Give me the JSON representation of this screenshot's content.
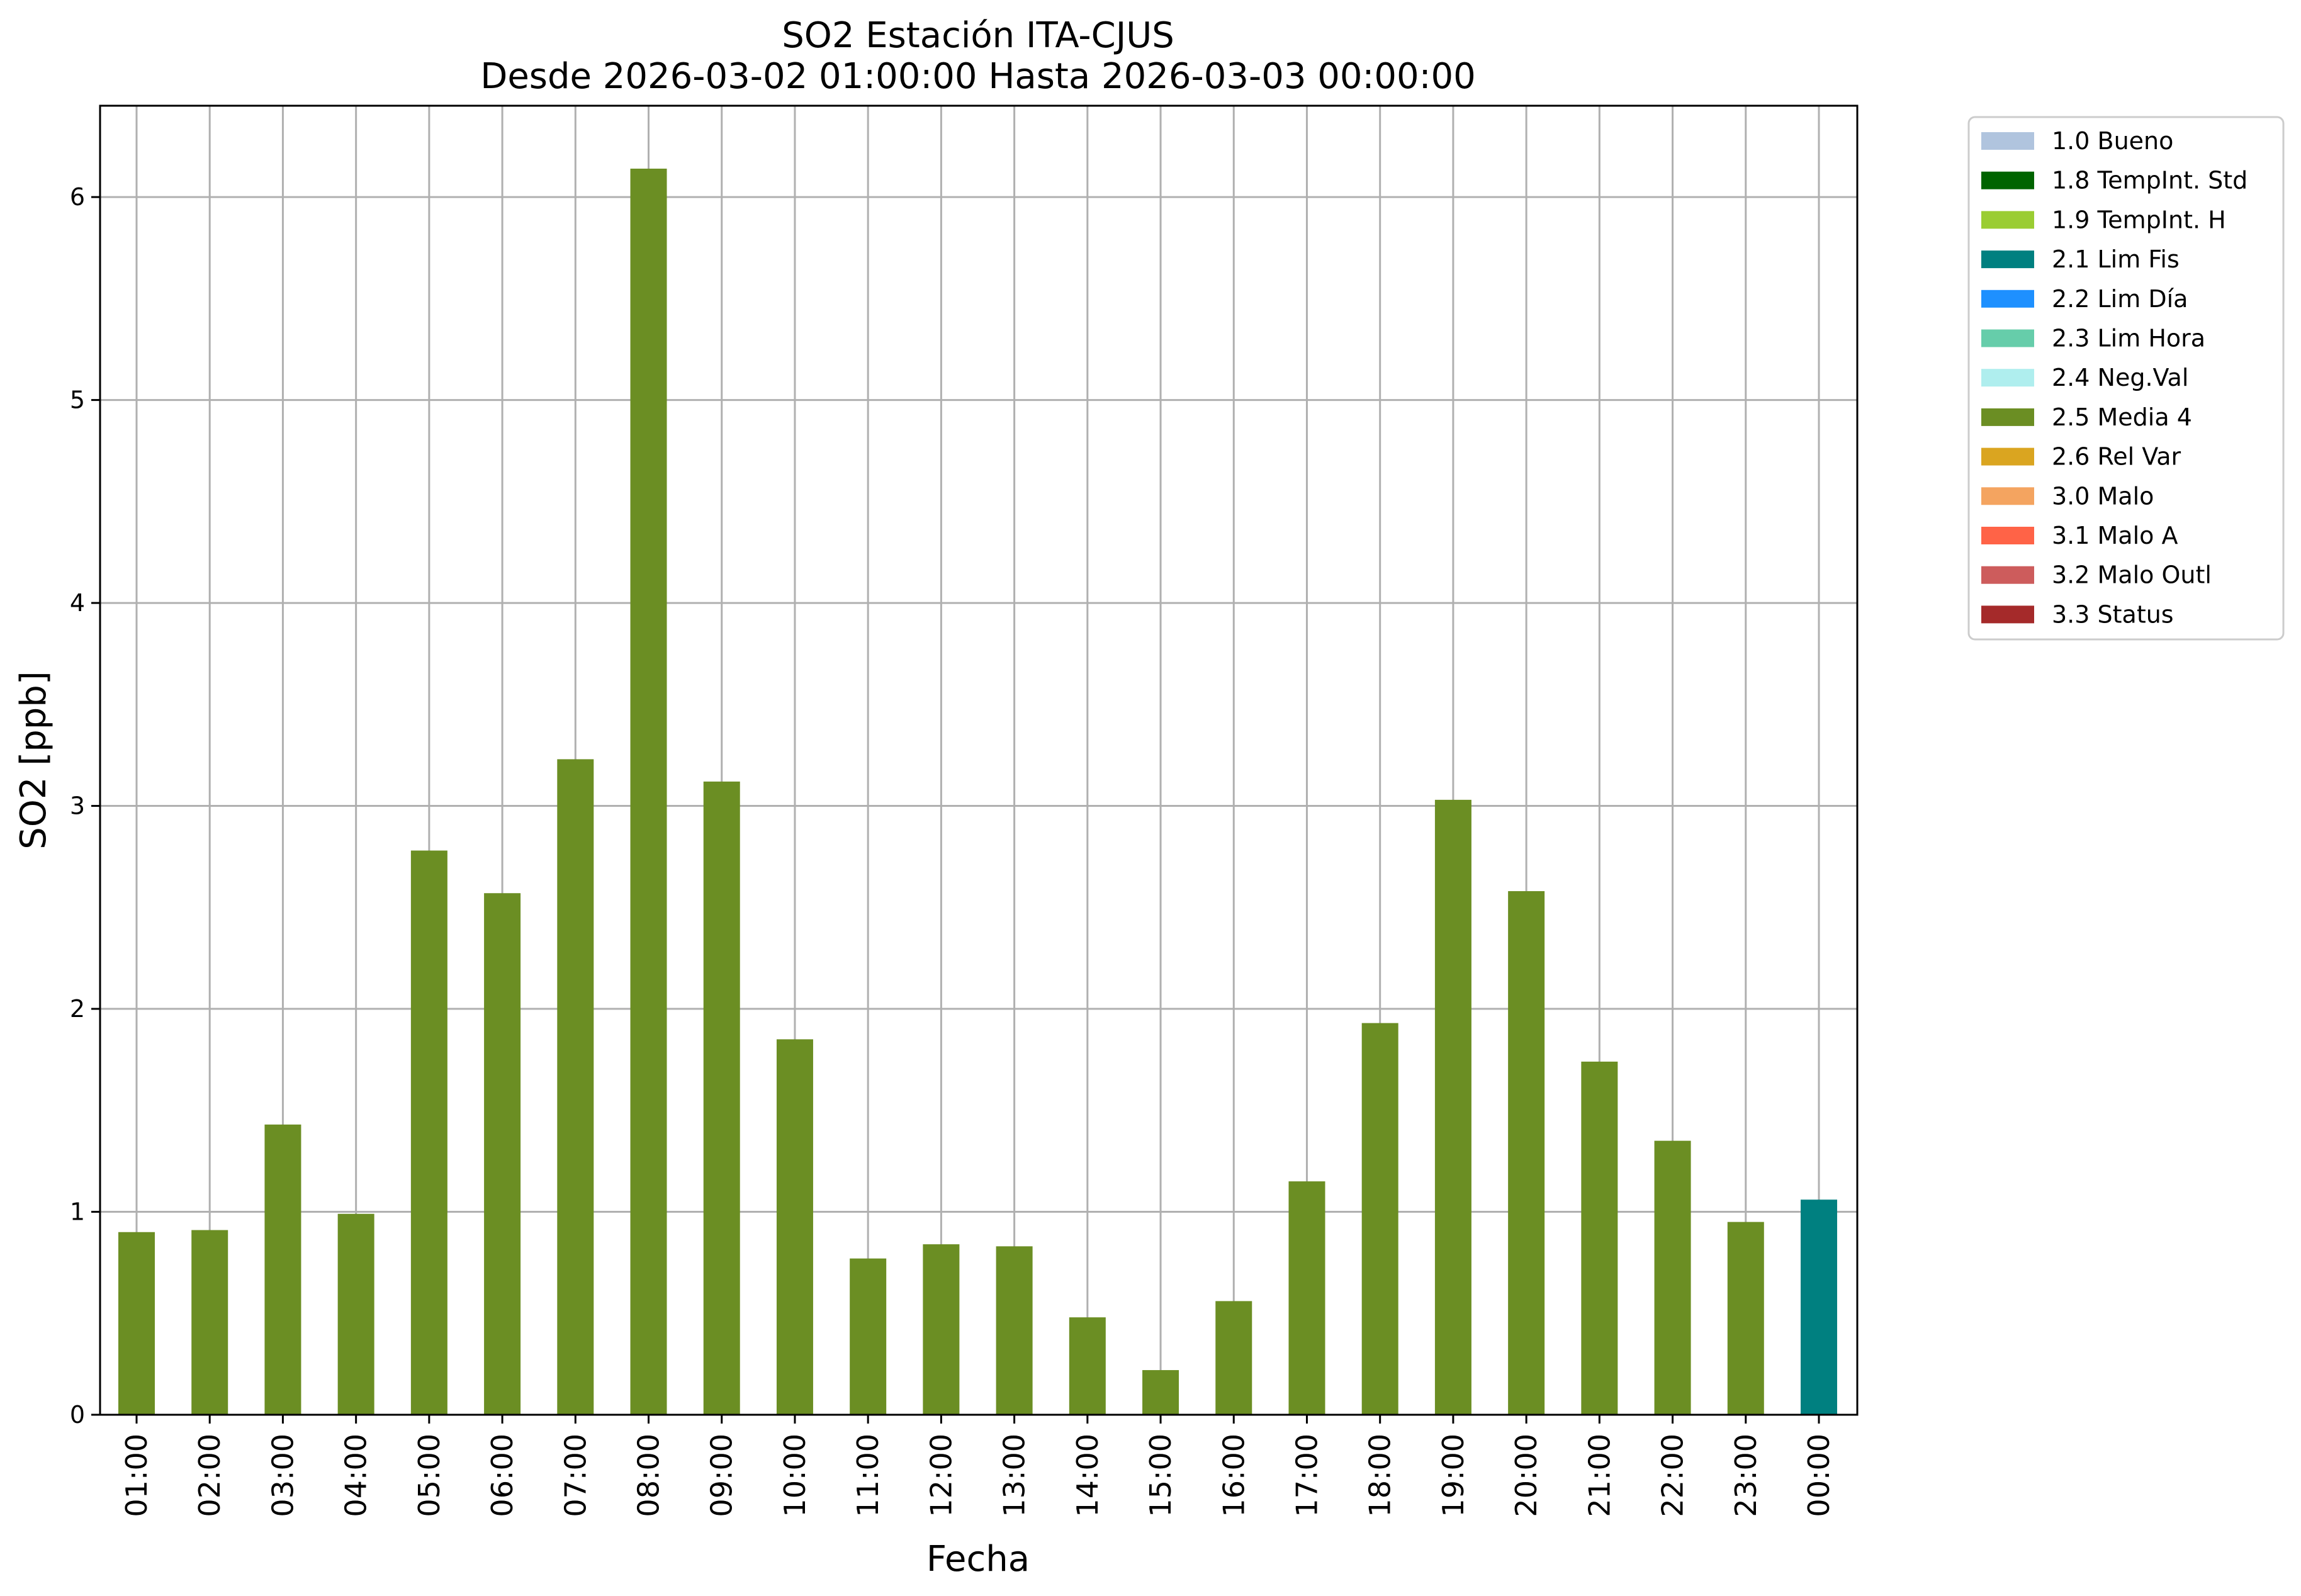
{
  "chart_data": {
    "type": "bar",
    "title": [
      "SO2 Estación ITA-CJUS",
      "Desde 2026-03-02 01:00:00 Hasta 2026-03-03 00:00:00"
    ],
    "xlabel": "Fecha",
    "ylabel": "SO2 [ppb]",
    "ylim": [
      0,
      6.45
    ],
    "yticks": [
      0,
      1,
      2,
      3,
      4,
      5,
      6
    ],
    "grid": true,
    "legend_position": "outside-top-right",
    "categories": [
      "01:00",
      "02:00",
      "03:00",
      "04:00",
      "05:00",
      "06:00",
      "07:00",
      "08:00",
      "09:00",
      "10:00",
      "11:00",
      "12:00",
      "13:00",
      "14:00",
      "15:00",
      "16:00",
      "17:00",
      "18:00",
      "19:00",
      "20:00",
      "21:00",
      "22:00",
      "23:00",
      "00:00"
    ],
    "values": [
      0.9,
      0.91,
      1.43,
      0.99,
      2.78,
      2.57,
      3.23,
      6.14,
      3.12,
      1.85,
      0.77,
      0.84,
      0.83,
      0.48,
      0.22,
      0.56,
      1.15,
      1.93,
      3.03,
      2.58,
      1.74,
      1.35,
      0.95,
      1.06
    ],
    "flags": [
      "2.5 Media 4",
      "2.5 Media 4",
      "2.5 Media 4",
      "2.5 Media 4",
      "2.5 Media 4",
      "2.5 Media 4",
      "2.5 Media 4",
      "2.5 Media 4",
      "2.5 Media 4",
      "2.5 Media 4",
      "2.5 Media 4",
      "2.5 Media 4",
      "2.5 Media 4",
      "2.5 Media 4",
      "2.5 Media 4",
      "2.5 Media 4",
      "2.5 Media 4",
      "2.5 Media 4",
      "2.5 Media 4",
      "2.5 Media 4",
      "2.5 Media 4",
      "2.5 Media 4",
      "2.5 Media 4",
      "2.1 Lim Fis"
    ],
    "legend": [
      {
        "label": "1.0 Bueno",
        "color": "#b0c4de"
      },
      {
        "label": "1.8 TempInt. Std",
        "color": "#006400"
      },
      {
        "label": "1.9 TempInt. H",
        "color": "#9acd32"
      },
      {
        "label": "2.1 Lim Fis",
        "color": "#008080"
      },
      {
        "label": "2.2 Lim Día",
        "color": "#1e90ff"
      },
      {
        "label": "2.3 Lim Hora",
        "color": "#66cdaa"
      },
      {
        "label": "2.4 Neg.Val",
        "color": "#afeeee"
      },
      {
        "label": "2.5 Media 4",
        "color": "#6b8e23"
      },
      {
        "label": "2.6 Rel Var",
        "color": "#daa520"
      },
      {
        "label": "3.0 Malo",
        "color": "#f4a460"
      },
      {
        "label": "3.1 Malo A",
        "color": "#ff6347"
      },
      {
        "label": "3.2 Malo Outl",
        "color": "#cd5c5c"
      },
      {
        "label": "3.3 Status",
        "color": "#a52a2a"
      }
    ]
  }
}
